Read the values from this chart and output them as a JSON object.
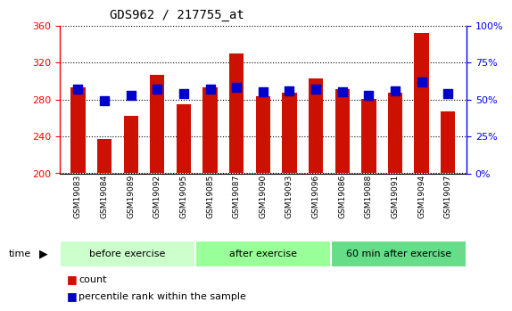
{
  "title": "GDS962 / 217755_at",
  "samples": [
    "GSM19083",
    "GSM19084",
    "GSM19089",
    "GSM19092",
    "GSM19095",
    "GSM19085",
    "GSM19087",
    "GSM19090",
    "GSM19093",
    "GSM19096",
    "GSM19086",
    "GSM19088",
    "GSM19091",
    "GSM19094",
    "GSM19097"
  ],
  "counts": [
    293,
    237,
    262,
    307,
    275,
    293,
    330,
    284,
    287,
    303,
    291,
    281,
    287,
    352,
    267
  ],
  "percentiles": [
    57,
    49,
    53,
    57,
    54,
    57,
    58,
    55,
    56,
    57,
    55,
    53,
    56,
    62,
    54
  ],
  "groups": [
    {
      "label": "before exercise",
      "start": 0,
      "end": 5,
      "color": "#ccffcc"
    },
    {
      "label": "after exercise",
      "start": 5,
      "end": 10,
      "color": "#99ff99"
    },
    {
      "label": "60 min after exercise",
      "start": 10,
      "end": 15,
      "color": "#66dd88"
    }
  ],
  "bar_color": "#cc1100",
  "dot_color": "#0000cc",
  "ylim_left": [
    200,
    360
  ],
  "ylim_right": [
    0,
    100
  ],
  "yticks_left": [
    200,
    240,
    280,
    320,
    360
  ],
  "yticks_right": [
    0,
    25,
    50,
    75,
    100
  ],
  "grid_color": "#000000",
  "bar_width": 0.55,
  "dot_size": 45,
  "bg_color": "#dddddd"
}
